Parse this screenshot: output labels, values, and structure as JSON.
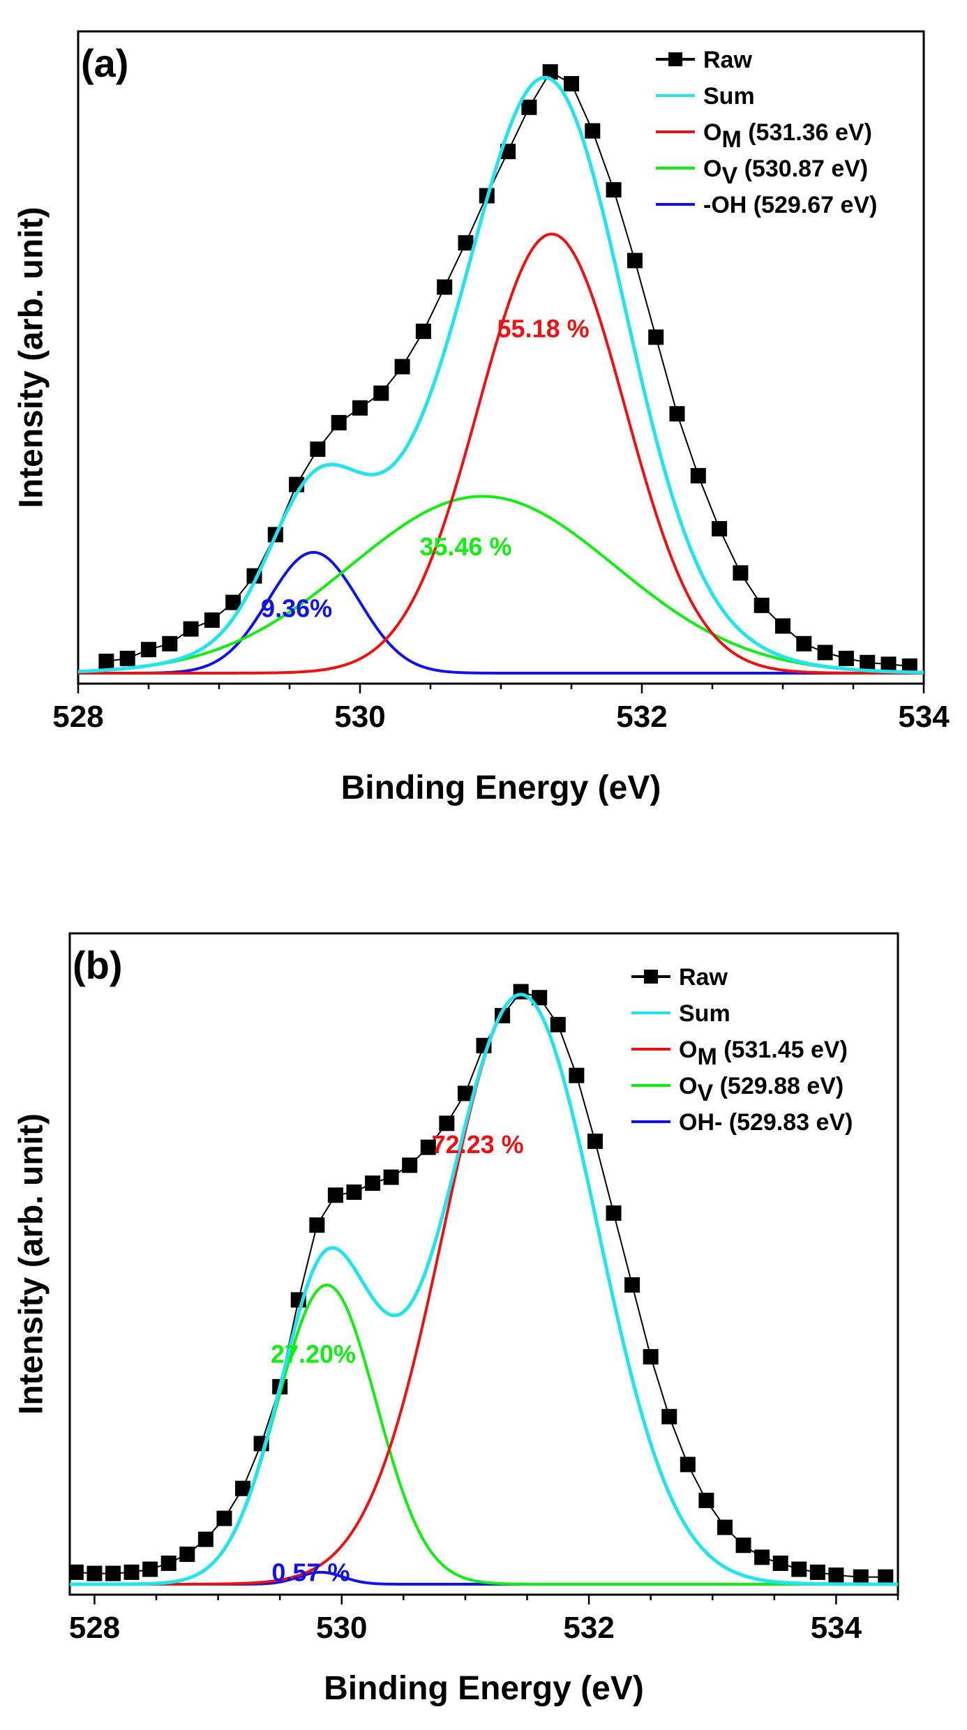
{
  "chart_data": [
    {
      "type": "line",
      "panel_label": "(a)",
      "xlabel": "Binding Energy (eV)",
      "ylabel": "Intensity (arb. unit)",
      "xlim": [
        528,
        534
      ],
      "ylim": [
        0,
        1.0
      ],
      "xticks": [
        528,
        530,
        532,
        534
      ],
      "xtick_labels": [
        "528",
        "530",
        "532",
        "534"
      ],
      "grid": false,
      "legend_position": "top-right",
      "colors": {
        "raw": "#000000",
        "sum": "#22e4ee",
        "om": "#ee1111",
        "ov": "#11ee11",
        "oh": "#1111ee"
      },
      "legend": [
        {
          "key": "raw",
          "main": "Raw",
          "sub": "",
          "rest": ""
        },
        {
          "key": "sum",
          "main": "Sum",
          "sub": "",
          "rest": ""
        },
        {
          "key": "om",
          "main": "O",
          "sub": "M",
          "rest": " (531.36 eV)"
        },
        {
          "key": "ov",
          "main": "O",
          "sub": "V",
          "rest": " (530.87 eV)"
        },
        {
          "key": "oh",
          "main": "-OH (529.67 eV)",
          "sub": "",
          "rest": ""
        }
      ],
      "components": [
        {
          "key": "om",
          "center": 531.36,
          "amplitude": 0.745,
          "sigma": 0.52
        },
        {
          "key": "ov",
          "center": 530.87,
          "amplitude": 0.3,
          "sigma": 0.94
        },
        {
          "key": "oh",
          "center": 529.67,
          "amplitude": 0.205,
          "sigma": 0.32
        }
      ],
      "series": [
        {
          "name": "Raw",
          "key": "raw",
          "x": [
            528.2,
            528.35,
            528.5,
            528.65,
            528.8,
            528.95,
            529.1,
            529.25,
            529.4,
            529.55,
            529.7,
            529.85,
            530.0,
            530.15,
            530.3,
            530.45,
            530.6,
            530.75,
            530.9,
            531.05,
            531.2,
            531.35,
            531.5,
            531.65,
            531.8,
            531.95,
            532.1,
            532.25,
            532.4,
            532.55,
            532.7,
            532.85,
            533.0,
            533.15,
            533.3,
            533.45,
            533.6,
            533.75,
            533.9
          ],
          "values": [
            0.02,
            0.025,
            0.04,
            0.05,
            0.075,
            0.09,
            0.12,
            0.165,
            0.235,
            0.32,
            0.38,
            0.425,
            0.45,
            0.475,
            0.52,
            0.58,
            0.655,
            0.73,
            0.81,
            0.885,
            0.96,
            1.02,
            1.0,
            0.92,
            0.82,
            0.7,
            0.57,
            0.44,
            0.335,
            0.245,
            0.17,
            0.115,
            0.08,
            0.05,
            0.035,
            0.025,
            0.018,
            0.015,
            0.012
          ]
        }
      ],
      "annotations": [
        {
          "text": "55.18 %",
          "key": "om",
          "x": 531.3,
          "y": 0.57
        },
        {
          "text": "35.46 %",
          "key": "ov",
          "x": 530.75,
          "y": 0.2
        },
        {
          "text": "9.36%",
          "key": "oh",
          "x": 529.55,
          "y": 0.095
        }
      ]
    },
    {
      "type": "line",
      "panel_label": "(b)",
      "xlabel": "Binding Energy (eV)",
      "ylabel": "Intensity (arb. unit)",
      "xlim": [
        527.8,
        534.5
      ],
      "ylim": [
        0,
        1.0
      ],
      "xticks": [
        528,
        530,
        532,
        534
      ],
      "xtick_labels": [
        "528",
        "530",
        "532",
        "534"
      ],
      "grid": false,
      "legend_position": "top-right",
      "colors": {
        "raw": "#000000",
        "sum": "#22e4ee",
        "om": "#ee1111",
        "ov": "#11ee11",
        "oh": "#1111ee"
      },
      "legend": [
        {
          "key": "raw",
          "main": "Raw",
          "sub": "",
          "rest": ""
        },
        {
          "key": "sum",
          "main": "Sum",
          "sub": "",
          "rest": ""
        },
        {
          "key": "om",
          "main": "O",
          "sub": "M",
          "rest": " (531.45 eV)"
        },
        {
          "key": "ov",
          "main": "O",
          "sub": "V",
          "rest": " (529.88 eV)"
        },
        {
          "key": "oh",
          "main": "OH- (529.83 eV)",
          "sub": "",
          "rest": ""
        }
      ],
      "components": [
        {
          "key": "om",
          "center": 531.45,
          "amplitude": 0.985,
          "sigma": 0.62
        },
        {
          "key": "ov",
          "center": 529.88,
          "amplitude": 0.5,
          "sigma": 0.4
        },
        {
          "key": "oh",
          "center": 529.83,
          "amplitude": 0.02,
          "sigma": 0.18
        }
      ],
      "series": [
        {
          "name": "Raw",
          "key": "raw",
          "x": [
            527.85,
            528.0,
            528.15,
            528.3,
            528.45,
            528.6,
            528.75,
            528.9,
            529.05,
            529.2,
            529.35,
            529.5,
            529.65,
            529.8,
            529.95,
            530.1,
            530.25,
            530.4,
            530.55,
            530.7,
            530.85,
            531.0,
            531.15,
            531.3,
            531.45,
            531.6,
            531.75,
            531.9,
            532.05,
            532.2,
            532.35,
            532.5,
            532.65,
            532.8,
            532.95,
            533.1,
            533.25,
            533.4,
            533.55,
            533.7,
            533.85,
            534.0,
            534.2,
            534.4
          ],
          "values": [
            0.02,
            0.018,
            0.018,
            0.02,
            0.025,
            0.035,
            0.05,
            0.075,
            0.11,
            0.16,
            0.235,
            0.33,
            0.475,
            0.6,
            0.65,
            0.655,
            0.67,
            0.68,
            0.7,
            0.73,
            0.77,
            0.82,
            0.9,
            0.95,
            0.99,
            0.98,
            0.935,
            0.85,
            0.74,
            0.62,
            0.5,
            0.38,
            0.28,
            0.2,
            0.14,
            0.095,
            0.065,
            0.045,
            0.035,
            0.025,
            0.02,
            0.015,
            0.012,
            0.012
          ]
        }
      ],
      "annotations": [
        {
          "text": "72.23 %",
          "key": "om",
          "x": 531.1,
          "y": 0.72
        },
        {
          "text": "27.20%",
          "key": "ov",
          "x": 529.77,
          "y": 0.37
        },
        {
          "text": "0.57 %",
          "key": "oh",
          "x": 529.75,
          "y": 0.005
        }
      ]
    }
  ]
}
